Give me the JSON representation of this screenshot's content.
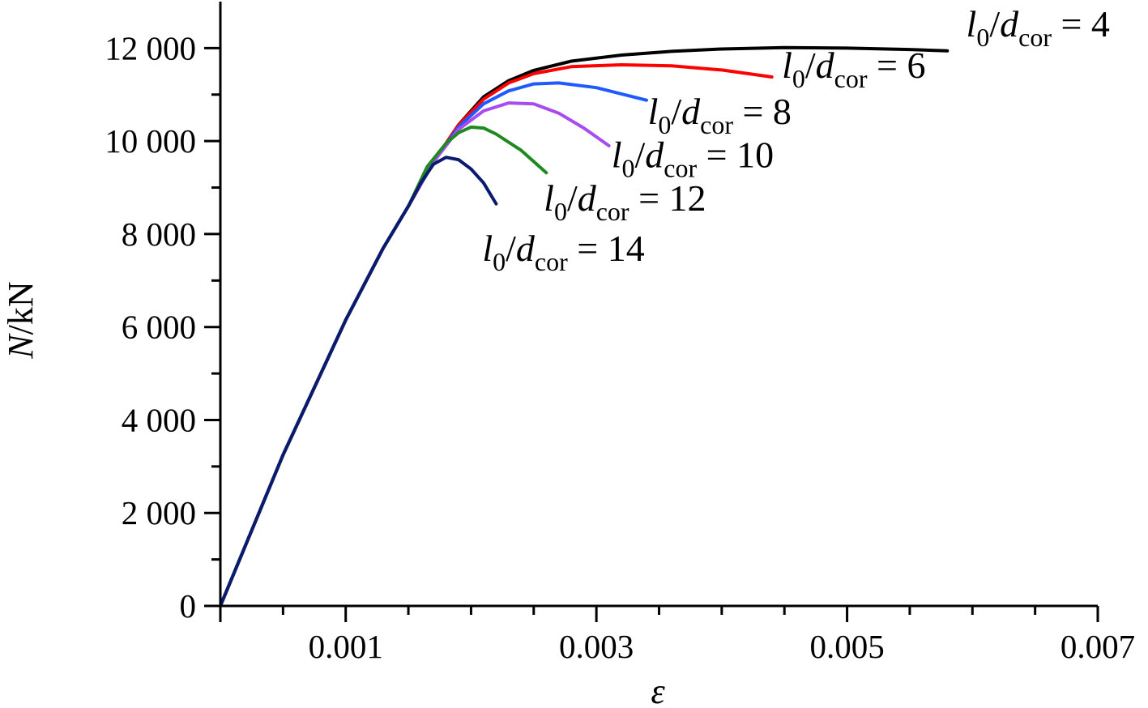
{
  "chart_data": {
    "type": "line",
    "xlabel": "ε",
    "ylabel_var": "N",
    "ylabel_unit": "/kN",
    "xlim": [
      0,
      0.007
    ],
    "ylim": [
      0,
      13000
    ],
    "x_ticks": [
      {
        "value": 0.001,
        "label": "0.001"
      },
      {
        "value": 0.003,
        "label": "0.003"
      },
      {
        "value": 0.005,
        "label": "0.005"
      },
      {
        "value": 0.007,
        "label": "0.007"
      }
    ],
    "x_minor_ticks": [
      0.0005,
      0.0015,
      0.002,
      0.0025,
      0.0035,
      0.004,
      0.0045,
      0.0055,
      0.006,
      0.0065
    ],
    "y_ticks": [
      {
        "value": 0,
        "label": "0"
      },
      {
        "value": 2000,
        "label": "2 000"
      },
      {
        "value": 4000,
        "label": "4 000"
      },
      {
        "value": 6000,
        "label": "6 000"
      },
      {
        "value": 8000,
        "label": "8 000"
      },
      {
        "value": 10000,
        "label": "10 000"
      },
      {
        "value": 12000,
        "label": "12 000"
      }
    ],
    "y_minor_ticks": [
      1000,
      3000,
      5000,
      7000,
      9000,
      11000
    ],
    "grid": false,
    "legend": "none",
    "series": [
      {
        "name": "l0/dcor = 4",
        "ratio": "4",
        "color": "#000000",
        "x": [
          0,
          0.0005,
          0.001,
          0.0013,
          0.0015,
          0.0017,
          0.0019,
          0.0021,
          0.0023,
          0.0025,
          0.0028,
          0.0032,
          0.0036,
          0.004,
          0.0045,
          0.005,
          0.0055,
          0.0058
        ],
        "y": [
          0,
          3250,
          6150,
          7700,
          8600,
          9550,
          10350,
          10950,
          11300,
          11520,
          11720,
          11850,
          11930,
          11980,
          12010,
          12000,
          11970,
          11940
        ]
      },
      {
        "name": "l0/dcor = 6",
        "ratio": "6",
        "color": "#ff0000",
        "x": [
          0,
          0.0005,
          0.001,
          0.0013,
          0.0015,
          0.0017,
          0.0019,
          0.0021,
          0.0023,
          0.0025,
          0.0028,
          0.0032,
          0.0036,
          0.004,
          0.0044
        ],
        "y": [
          0,
          3250,
          6150,
          7700,
          8600,
          9550,
          10350,
          10900,
          11250,
          11450,
          11600,
          11640,
          11620,
          11530,
          11380
        ]
      },
      {
        "name": "l0/dcor = 8",
        "ratio": "8",
        "color": "#1e5aff",
        "x": [
          0,
          0.0005,
          0.001,
          0.0013,
          0.0015,
          0.0017,
          0.0019,
          0.0021,
          0.0023,
          0.0025,
          0.0027,
          0.003,
          0.0034
        ],
        "y": [
          0,
          3250,
          6150,
          7700,
          8600,
          9550,
          10300,
          10800,
          11080,
          11230,
          11250,
          11150,
          10880
        ]
      },
      {
        "name": "l0/dcor = 10",
        "ratio": "10",
        "color": "#a84cf0",
        "x": [
          0,
          0.0005,
          0.001,
          0.0013,
          0.0015,
          0.0017,
          0.0019,
          0.0021,
          0.0023,
          0.0025,
          0.0027,
          0.0029,
          0.0031
        ],
        "y": [
          0,
          3250,
          6150,
          7700,
          8600,
          9550,
          10250,
          10650,
          10820,
          10800,
          10600,
          10280,
          9900
        ]
      },
      {
        "name": "l0/dcor = 12",
        "ratio": "12",
        "color": "#1f8a1f",
        "x": [
          0,
          0.0005,
          0.001,
          0.0013,
          0.0015,
          0.00165,
          0.0018,
          0.0019,
          0.002,
          0.0021,
          0.0022,
          0.0024,
          0.0026
        ],
        "y": [
          0,
          3250,
          6150,
          7700,
          8600,
          9450,
          9950,
          10180,
          10300,
          10280,
          10150,
          9800,
          9320
        ]
      },
      {
        "name": "l0/dcor = 14",
        "ratio": "14",
        "color": "#0a1a6e",
        "x": [
          0,
          0.0005,
          0.001,
          0.0013,
          0.0015,
          0.0016,
          0.0017,
          0.0018,
          0.0019,
          0.002,
          0.0021,
          0.0022
        ],
        "y": [
          0,
          3250,
          6150,
          7700,
          8600,
          9100,
          9500,
          9650,
          9600,
          9400,
          9100,
          8650
        ]
      }
    ],
    "annotations": [
      {
        "series_ratio": "4",
        "x": 0.00595,
        "y": 12250
      },
      {
        "series_ratio": "6",
        "x": 0.00448,
        "y": 11360
      },
      {
        "series_ratio": "8",
        "x": 0.00341,
        "y": 10370
      },
      {
        "series_ratio": "10",
        "x": 0.00312,
        "y": 9440
      },
      {
        "series_ratio": "12",
        "x": 0.00258,
        "y": 8500
      },
      {
        "series_ratio": "14",
        "x": 0.00209,
        "y": 7420
      }
    ],
    "label_var_l": "l",
    "label_sub_0": "0",
    "label_slash": "/",
    "label_var_d": "d",
    "label_sub_cor": "cor",
    "label_eq": " = "
  }
}
